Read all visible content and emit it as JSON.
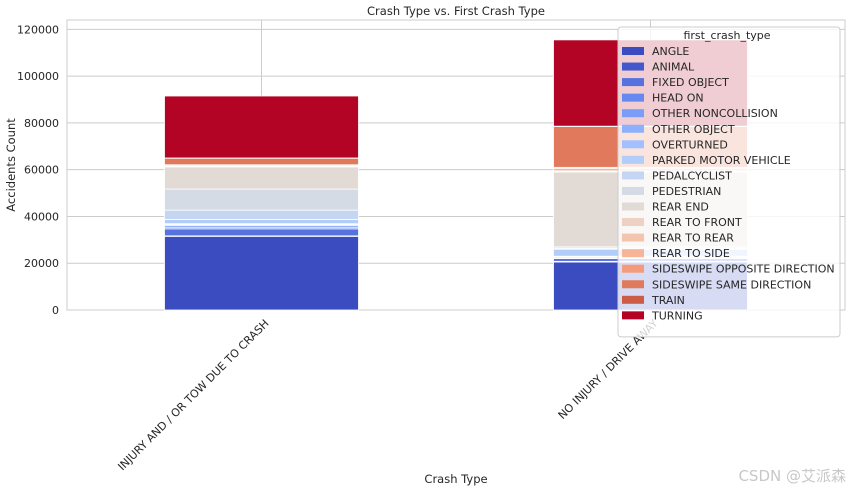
{
  "watermark": "CSDN @艾派森",
  "chart_data": {
    "type": "bar",
    "stacked": true,
    "title": "Crash Type vs. First Crash Type",
    "xlabel": "Crash Type",
    "ylabel": "Accidents Count",
    "categories": [
      "INJURY AND / OR TOW DUE TO CRASH",
      "NO INJURY / DRIVE AWAY"
    ],
    "ylim": [
      0,
      124000
    ],
    "yticks": [
      0,
      20000,
      40000,
      60000,
      80000,
      100000,
      120000
    ],
    "ytick_labels": [
      "0",
      "20000",
      "40000",
      "60000",
      "80000",
      "100000",
      "120000"
    ],
    "grid": true,
    "legend": {
      "title": "first_crash_type",
      "placement": "top-right"
    },
    "series": [
      {
        "name": "ANGLE",
        "color": "#3b4cc0",
        "values": [
          31500,
          20500
        ]
      },
      {
        "name": "ANIMAL",
        "color": "#4358cb",
        "values": [
          200,
          300
        ]
      },
      {
        "name": "FIXED OBJECT",
        "color": "#5572df",
        "values": [
          3000,
          1200
        ]
      },
      {
        "name": "HEAD ON",
        "color": "#6788ee",
        "values": [
          700,
          200
        ]
      },
      {
        "name": "OTHER NONCOLLISION",
        "color": "#7a9df8",
        "values": [
          800,
          400
        ]
      },
      {
        "name": "OTHER OBJECT",
        "color": "#8db0fe",
        "values": [
          400,
          300
        ]
      },
      {
        "name": "OVERTURNED",
        "color": "#a1c0ff",
        "values": [
          300,
          100
        ]
      },
      {
        "name": "PARKED MOTOR VEHICLE",
        "color": "#b3cdfb",
        "values": [
          1800,
          3000
        ]
      },
      {
        "name": "PEDALCYCLIST",
        "color": "#c5d6f2",
        "values": [
          4000,
          400
        ]
      },
      {
        "name": "PEDESTRIAN",
        "color": "#d5dbe5",
        "values": [
          9000,
          600
        ]
      },
      {
        "name": "REAR END",
        "color": "#e2dad5",
        "values": [
          9500,
          32000
        ]
      },
      {
        "name": "REAR TO FRONT",
        "color": "#edd1c2",
        "values": [
          100,
          300
        ]
      },
      {
        "name": "REAR TO REAR",
        "color": "#f4c5ad",
        "values": [
          100,
          200
        ]
      },
      {
        "name": "REAR TO SIDE",
        "color": "#f7b497",
        "values": [
          300,
          1000
        ]
      },
      {
        "name": "SIDESWIPE OPPOSITE DIRECTION",
        "color": "#f39b7a",
        "values": [
          400,
          500
        ]
      },
      {
        "name": "SIDESWIPE SAME DIRECTION",
        "color": "#e17a5d",
        "values": [
          2800,
          17500
        ]
      },
      {
        "name": "TRAIN",
        "color": "#cc5b47",
        "values": [
          100,
          100
        ]
      },
      {
        "name": "TURNING",
        "color": "#b40426",
        "values": [
          26500,
          36900
        ]
      }
    ]
  }
}
